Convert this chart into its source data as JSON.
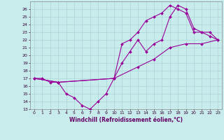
{
  "xlabel": "Windchill (Refroidissement éolien,°C)",
  "bg_color": "#c8ecec",
  "grid_color": "#b0d8d8",
  "line_color": "#990099",
  "marker_color": "#990099",
  "xlim": [
    -0.5,
    23.5
  ],
  "ylim": [
    13,
    27
  ],
  "xticks": [
    0,
    1,
    2,
    3,
    4,
    5,
    6,
    7,
    8,
    9,
    10,
    11,
    12,
    13,
    14,
    15,
    16,
    17,
    18,
    19,
    20,
    21,
    22,
    23
  ],
  "yticks": [
    13,
    14,
    15,
    16,
    17,
    18,
    19,
    20,
    21,
    22,
    23,
    24,
    25,
    26
  ],
  "series1": [
    [
      0,
      17
    ],
    [
      1,
      17
    ],
    [
      2,
      16.5
    ],
    [
      3,
      16.5
    ],
    [
      4,
      15
    ],
    [
      5,
      14.5
    ],
    [
      6,
      13.5
    ],
    [
      7,
      13
    ],
    [
      8,
      14
    ],
    [
      9,
      15
    ],
    [
      10,
      17
    ],
    [
      11,
      21.5
    ],
    [
      12,
      22
    ],
    [
      13,
      23
    ],
    [
      14,
      24.5
    ],
    [
      15,
      25
    ],
    [
      16,
      25.5
    ],
    [
      17,
      26.5
    ],
    [
      18,
      26
    ],
    [
      19,
      25.5
    ],
    [
      20,
      23
    ],
    [
      21,
      23
    ],
    [
      22,
      22.5
    ],
    [
      23,
      22
    ]
  ],
  "series2": [
    [
      0,
      17
    ],
    [
      3,
      16.5
    ],
    [
      10,
      17
    ],
    [
      11,
      19
    ],
    [
      12,
      20.5
    ],
    [
      13,
      22
    ],
    [
      14,
      20.5
    ],
    [
      15,
      21.5
    ],
    [
      16,
      22
    ],
    [
      17,
      25
    ],
    [
      18,
      26.5
    ],
    [
      19,
      26
    ],
    [
      20,
      23.5
    ],
    [
      21,
      23
    ],
    [
      22,
      23
    ],
    [
      23,
      22
    ]
  ],
  "series3": [
    [
      0,
      17
    ],
    [
      3,
      16.5
    ],
    [
      10,
      17
    ],
    [
      13,
      18.5
    ],
    [
      15,
      19.5
    ],
    [
      17,
      21
    ],
    [
      19,
      21.5
    ],
    [
      21,
      21.5
    ],
    [
      23,
      22
    ]
  ]
}
